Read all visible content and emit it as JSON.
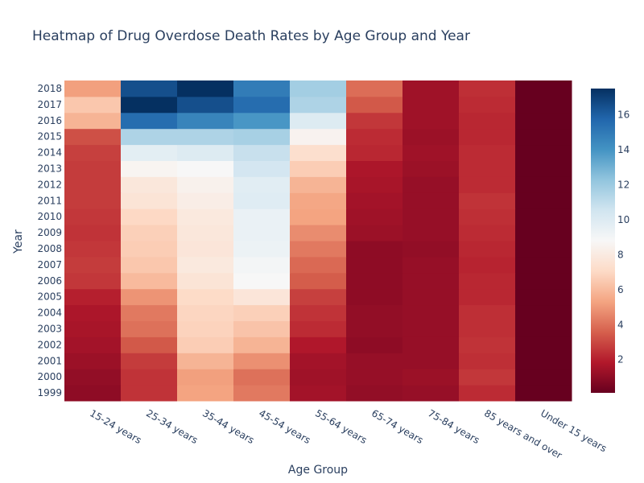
{
  "chart_data": {
    "type": "heatmap",
    "title": "Heatmap of Drug Overdose Death Rates by Age Group and Year",
    "xlabel": "Age Group",
    "ylabel": "Year",
    "x": [
      "15-24 years",
      "25-34 years",
      "35-44 years",
      "45-54 years",
      "55-64 years",
      "65-74 years",
      "75-84 years",
      "85 years and over",
      "Under 15 years"
    ],
    "y": [
      "1999",
      "2000",
      "2001",
      "2002",
      "2003",
      "2004",
      "2005",
      "2006",
      "2007",
      "2008",
      "2009",
      "2010",
      "2011",
      "2012",
      "2013",
      "2014",
      "2015",
      "2016",
      "2017",
      "2018"
    ],
    "z": [
      [
        1.0,
        2.5,
        5.3,
        4.2,
        1.5,
        1.1,
        1.2,
        2.3,
        0.1
      ],
      [
        1.1,
        2.5,
        5.2,
        4.0,
        1.4,
        1.2,
        1.3,
        2.6,
        0.1
      ],
      [
        1.3,
        2.7,
        5.8,
        4.8,
        1.5,
        1.2,
        1.2,
        2.4,
        0.1
      ],
      [
        1.5,
        3.4,
        6.6,
        5.8,
        1.8,
        1.0,
        1.2,
        2.5,
        0.1
      ],
      [
        1.6,
        4.0,
        6.8,
        6.3,
        2.3,
        1.1,
        1.2,
        2.4,
        0.1
      ],
      [
        1.7,
        4.2,
        6.9,
        6.7,
        2.5,
        1.1,
        1.2,
        2.4,
        0.1
      ],
      [
        2.0,
        4.9,
        7.1,
        7.7,
        2.8,
        1.0,
        1.2,
        2.2,
        0.1
      ],
      [
        2.6,
        6.0,
        7.6,
        8.8,
        3.5,
        1.0,
        1.2,
        2.2,
        0.1
      ],
      [
        2.7,
        6.4,
        7.9,
        9.0,
        3.8,
        1.0,
        1.2,
        2.1,
        0.1
      ],
      [
        2.6,
        6.6,
        7.7,
        9.3,
        4.2,
        1.0,
        1.1,
        2.2,
        0.1
      ],
      [
        2.5,
        6.7,
        7.8,
        9.4,
        4.7,
        1.3,
        1.2,
        2.3,
        0.1
      ],
      [
        2.6,
        7.0,
        7.9,
        9.4,
        5.3,
        1.4,
        1.2,
        2.4,
        0.1
      ],
      [
        2.7,
        7.6,
        8.2,
        9.9,
        5.4,
        1.5,
        1.2,
        2.5,
        0.1
      ],
      [
        2.7,
        7.8,
        8.4,
        9.8,
        5.8,
        1.6,
        1.2,
        2.3,
        0.1
      ],
      [
        2.7,
        8.6,
        8.8,
        10.4,
        6.6,
        1.7,
        1.3,
        2.3,
        0.1
      ],
      [
        2.8,
        9.7,
        10.0,
        10.8,
        7.3,
        2.2,
        1.4,
        2.3,
        0.1
      ],
      [
        3.2,
        11.5,
        11.5,
        11.7,
        8.5,
        2.3,
        1.3,
        2.2,
        0.1
      ],
      [
        5.8,
        15.5,
        14.6,
        13.9,
        10.0,
        2.6,
        1.4,
        2.2,
        0.1
      ],
      [
        6.4,
        17.5,
        16.5,
        15.5,
        11.5,
        3.4,
        1.4,
        2.3,
        0.1
      ],
      [
        5.2,
        16.5,
        17.5,
        14.9,
        11.8,
        3.9,
        1.4,
        2.4,
        0.1
      ]
    ],
    "zmin": 0.1,
    "zmax": 17.5,
    "colorscale": "RdBu",
    "colorbar_ticks": [
      2,
      4,
      6,
      8,
      10,
      12,
      14,
      16
    ],
    "grid": false,
    "legend": "colorbar-right"
  }
}
